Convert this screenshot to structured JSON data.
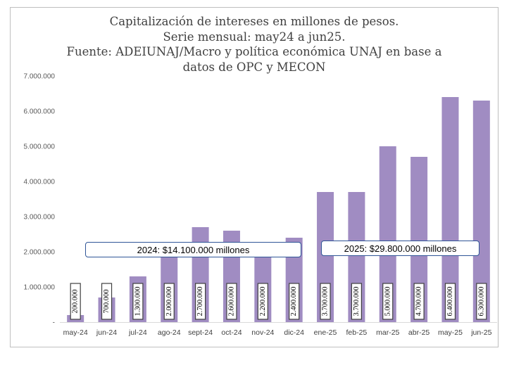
{
  "title_lines": [
    "Capitalización de intereses en millones de pesos.",
    "Serie mensual: may24 a jun25.",
    "Fuente: ADEIUNAJ/Macro y política económica UNAJ en base a",
    "datos de OPC y MECON"
  ],
  "annotations": {
    "total_2024": "2024: $14.100.000 millones",
    "total_2025": "2025: $29.800.000 millones"
  },
  "chart_data": {
    "type": "bar",
    "title": "Capitalización de intereses en millones de pesos. Serie mensual: may24 a jun25. Fuente: ADEIUNAJ/Macro y política económica UNAJ en base a datos de OPC y MECON",
    "categories": [
      "may-24",
      "jun-24",
      "jul-24",
      "ago-24",
      "sept-24",
      "oct-24",
      "nov-24",
      "dic-24",
      "ene-25",
      "feb-25",
      "mar-25",
      "abr-25",
      "may-25",
      "jun-25"
    ],
    "values": [
      200000,
      700000,
      1300000,
      2000000,
      2700000,
      2600000,
      2200000,
      2400000,
      3700000,
      3700000,
      5000000,
      4700000,
      6400000,
      6300000
    ],
    "data_labels": [
      "200.000",
      "700.000",
      "1.300.000",
      "2.000.000",
      "2.700.000",
      "2.600.000",
      "2.200.000",
      "2.400.000",
      "3.700.000",
      "3.700.000",
      "5.000.000",
      "4.700.000",
      "6.400.000",
      "6.300.000"
    ],
    "ylim": [
      0,
      7000000
    ],
    "yticks": [
      0,
      1000000,
      2000000,
      3000000,
      4000000,
      5000000,
      6000000,
      7000000
    ],
    "ytick_labels": [
      "-",
      "1.000.000",
      "2.000.000",
      "3.000.000",
      "4.000.000",
      "5.000.000",
      "6.000.000",
      "7.000.000"
    ],
    "xlabel": "",
    "ylabel": "",
    "grid": false,
    "legend": "none",
    "bar_color": "#a08cc2"
  }
}
